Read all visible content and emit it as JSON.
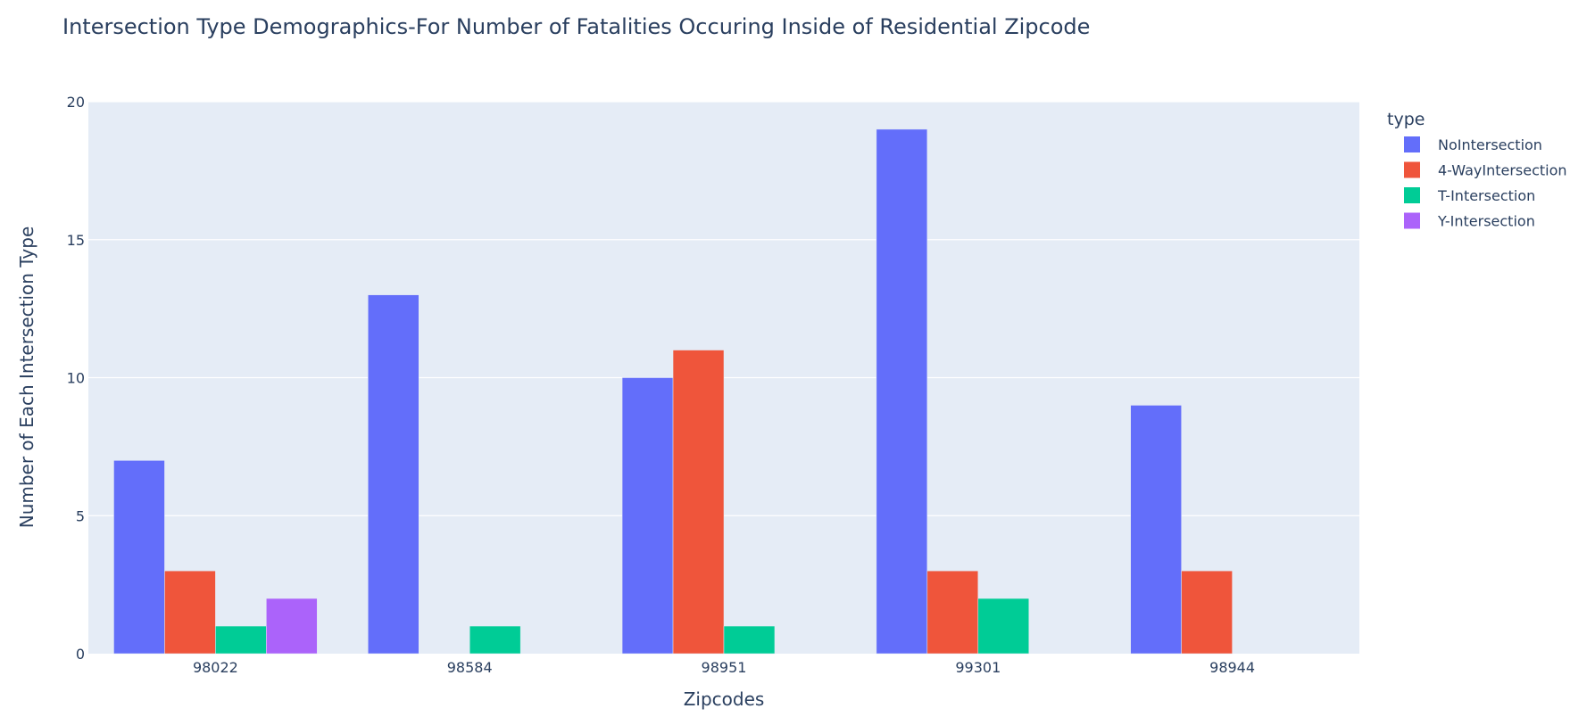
{
  "chart_data": {
    "type": "bar",
    "title": "Intersection Type Demographics-For Number of Fatalities Occuring Inside of Residential Zipcode",
    "xlabel": "Zipcodes",
    "ylabel": "Number of Each Intersection Type",
    "legend_title": "type",
    "legend_position": "right",
    "grid": true,
    "ylim": [
      0,
      20
    ],
    "yticks": [
      0,
      5,
      10,
      15,
      20
    ],
    "categories": [
      "98022",
      "98584",
      "98951",
      "99301",
      "98944"
    ],
    "series": [
      {
        "name": "NoIntersection",
        "color": "#636efa",
        "values": [
          7,
          13,
          10,
          19,
          9
        ]
      },
      {
        "name": "4-WayIntersection",
        "color": "#ef553b",
        "values": [
          3,
          0,
          11,
          3,
          3
        ]
      },
      {
        "name": "T-Intersection",
        "color": "#00cc96",
        "values": [
          1,
          1,
          1,
          2,
          0
        ]
      },
      {
        "name": "Y-Intersection",
        "color": "#ab63fa",
        "values": [
          2,
          0,
          0,
          0,
          0
        ]
      }
    ]
  }
}
